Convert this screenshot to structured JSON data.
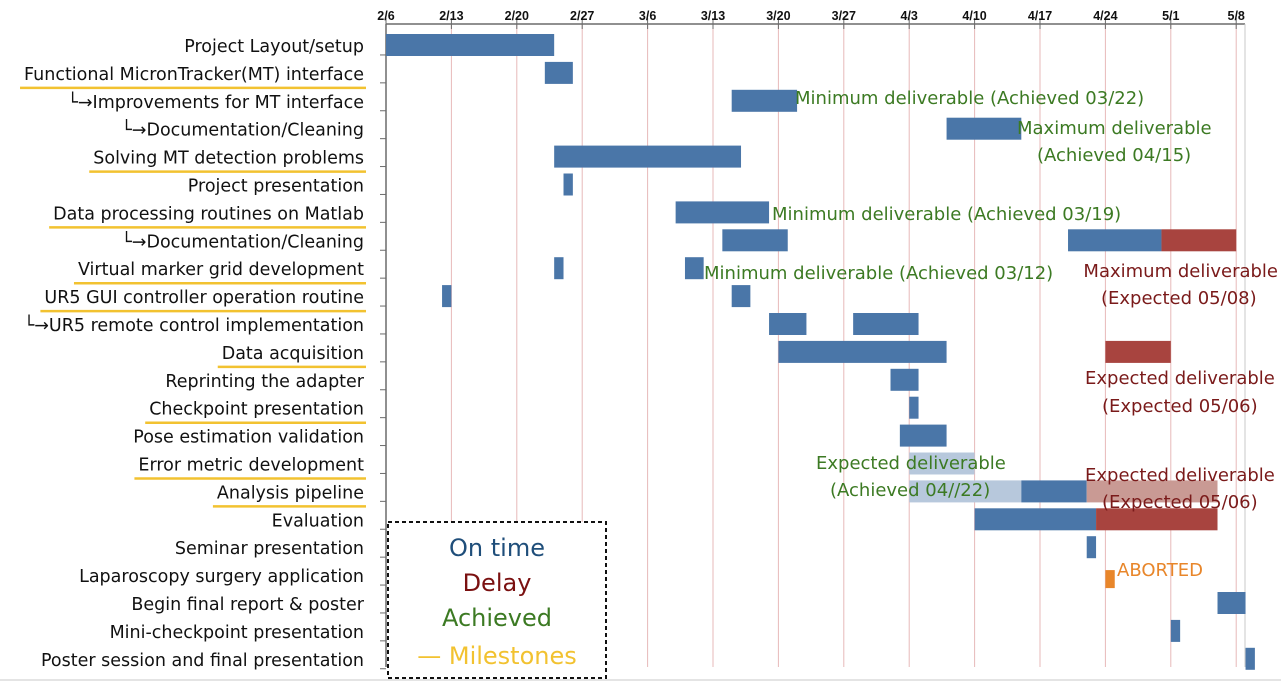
{
  "chart_data": {
    "type": "gantt",
    "x_axis": {
      "ticks": [
        "2/6",
        "2/13",
        "2/20",
        "2/27",
        "3/6",
        "3/13",
        "3/20",
        "3/27",
        "4/3",
        "4/10",
        "4/17",
        "4/24",
        "5/1",
        "5/8"
      ],
      "range": [
        "2/6",
        "5/9"
      ],
      "grid": true
    },
    "tasks": [
      {
        "label": "Project Layout/setup",
        "milestone": false
      },
      {
        "label": "Functional MicronTracker(MT) interface",
        "milestone": true
      },
      {
        "label": "└→Improvements for MT interface",
        "milestone": false
      },
      {
        "label": "└→Documentation/Cleaning",
        "milestone": false
      },
      {
        "label": "Solving MT detection problems",
        "milestone": true
      },
      {
        "label": "Project presentation",
        "milestone": false
      },
      {
        "label": "Data processing routines on Matlab",
        "milestone": true
      },
      {
        "label": "└→Documentation/Cleaning",
        "milestone": false
      },
      {
        "label": "Virtual marker grid development",
        "milestone": true
      },
      {
        "label": "UR5 GUI controller operation routine",
        "milestone": true
      },
      {
        "label": "└→UR5 remote control implementation",
        "milestone": false
      },
      {
        "label": "Data acquisition",
        "milestone": true
      },
      {
        "label": "Reprinting the adapter",
        "milestone": false
      },
      {
        "label": "Checkpoint presentation",
        "milestone": true
      },
      {
        "label": "Pose estimation validation",
        "milestone": false
      },
      {
        "label": "Error metric development",
        "milestone": true
      },
      {
        "label": "Analysis pipeline",
        "milestone": true
      },
      {
        "label": "Evaluation",
        "milestone": false
      },
      {
        "label": "Seminar presentation",
        "milestone": false
      },
      {
        "label": "Laparoscopy surgery application",
        "milestone": false
      },
      {
        "label": "Begin final report & poster",
        "milestone": false
      },
      {
        "label": "Mini-checkpoint presentation",
        "milestone": false
      },
      {
        "label": "Poster session and final presentation",
        "milestone": false
      }
    ],
    "bars": [
      {
        "task": 0,
        "start": "2/6",
        "end": "2/24",
        "status": "on_time"
      },
      {
        "task": 1,
        "start": "2/23",
        "end": "2/26",
        "status": "on_time"
      },
      {
        "task": 2,
        "start": "3/15",
        "end": "3/22",
        "status": "on_time"
      },
      {
        "task": 3,
        "start": "4/7",
        "end": "4/15",
        "status": "on_time"
      },
      {
        "task": 4,
        "start": "2/24",
        "end": "3/16",
        "status": "on_time"
      },
      {
        "task": 5,
        "start": "2/25",
        "end": "2/26",
        "status": "on_time"
      },
      {
        "task": 6,
        "start": "3/9",
        "end": "3/19",
        "status": "on_time"
      },
      {
        "task": 7,
        "start": "3/14",
        "end": "3/21",
        "status": "on_time"
      },
      {
        "task": 7,
        "start": "4/20",
        "end": "4/30",
        "status": "on_time"
      },
      {
        "task": 7,
        "start": "4/30",
        "end": "5/8",
        "status": "delay"
      },
      {
        "task": 8,
        "start": "2/24",
        "end": "2/25",
        "status": "on_time"
      },
      {
        "task": 8,
        "start": "3/10",
        "end": "3/12",
        "status": "on_time"
      },
      {
        "task": 9,
        "start": "2/12",
        "end": "2/13",
        "status": "on_time"
      },
      {
        "task": 9,
        "start": "3/15",
        "end": "3/17",
        "status": "on_time"
      },
      {
        "task": 10,
        "start": "3/19",
        "end": "3/23",
        "status": "on_time"
      },
      {
        "task": 10,
        "start": "3/28",
        "end": "4/4",
        "status": "on_time"
      },
      {
        "task": 11,
        "start": "3/20",
        "end": "4/7",
        "status": "on_time"
      },
      {
        "task": 11,
        "start": "4/24",
        "end": "5/1",
        "status": "delay"
      },
      {
        "task": 12,
        "start": "4/1",
        "end": "4/4",
        "status": "on_time"
      },
      {
        "task": 13,
        "start": "4/3",
        "end": "4/4",
        "status": "on_time"
      },
      {
        "task": 14,
        "start": "4/2",
        "end": "4/7",
        "status": "on_time"
      },
      {
        "task": 15,
        "start": "4/3",
        "end": "4/10",
        "status": "faded"
      },
      {
        "task": 16,
        "start": "4/3",
        "end": "4/15",
        "status": "faded"
      },
      {
        "task": 16,
        "start": "4/15",
        "end": "4/22",
        "status": "on_time"
      },
      {
        "task": 16,
        "start": "4/22",
        "end": "5/6",
        "status": "faded_delay"
      },
      {
        "task": 17,
        "start": "4/10",
        "end": "4/23",
        "status": "on_time"
      },
      {
        "task": 17,
        "start": "4/23",
        "end": "5/6",
        "status": "delay"
      },
      {
        "task": 18,
        "start": "4/22",
        "end": "4/23",
        "status": "on_time"
      },
      {
        "task": 19,
        "start": "4/24",
        "end": "4/25",
        "status": "aborted"
      },
      {
        "task": 20,
        "start": "5/6",
        "end": "5/9",
        "status": "on_time"
      },
      {
        "task": 21,
        "start": "5/1",
        "end": "5/2",
        "status": "on_time"
      },
      {
        "task": 22,
        "start": "5/9",
        "end": "5/10",
        "status": "on_time"
      }
    ],
    "annotations": [
      {
        "text": "Minimum deliverable (Achieved 03/22)",
        "status": "achieved"
      },
      {
        "text": "Maximum deliverable",
        "status": "achieved"
      },
      {
        "text": "(Achieved 04/15)",
        "status": "achieved"
      },
      {
        "text": "Minimum deliverable (Achieved 03/19)",
        "status": "achieved"
      },
      {
        "text": "Minimum deliverable (Achieved 03/12)",
        "status": "achieved"
      },
      {
        "text": "Maximum deliverable",
        "status": "delay"
      },
      {
        "text": "(Expected 05/08)",
        "status": "delay"
      },
      {
        "text": "Expected deliverable",
        "status": "delay"
      },
      {
        "text": "(Expected 05/06)",
        "status": "delay"
      },
      {
        "text": "Expected deliverable",
        "status": "achieved"
      },
      {
        "text": "(Achieved 04//22)",
        "status": "achieved"
      },
      {
        "text": "Expected deliverable",
        "status": "delay"
      },
      {
        "text": "(Expected 05/06)",
        "status": "delay"
      },
      {
        "text": "ABORTED",
        "status": "aborted"
      }
    ],
    "legend": {
      "placement": "bottom-left",
      "entries": [
        {
          "label": "On time",
          "status": "on_time"
        },
        {
          "label": "Delay",
          "status": "delay"
        },
        {
          "label": "Achieved",
          "status": "achieved"
        },
        {
          "label": "— Milestones",
          "status": "milestone"
        }
      ]
    }
  },
  "colors": {
    "on_time": "#4a76a8",
    "delay": "#a8443f",
    "faded": "#b7c8dc",
    "faded_delay": "#c99a94",
    "aborted": "#e8862a",
    "achieved_text": "#3c7a23",
    "delay_text": "#7a1a1a",
    "aborted_text": "#e8862a",
    "legend_on_time": "#1f4e7a",
    "legend_delay": "#7a1010",
    "legend_achieved": "#3c7a23",
    "milestone": "#f2c230",
    "grid": "#e7b9b9",
    "axis": "#6b6b6b"
  }
}
